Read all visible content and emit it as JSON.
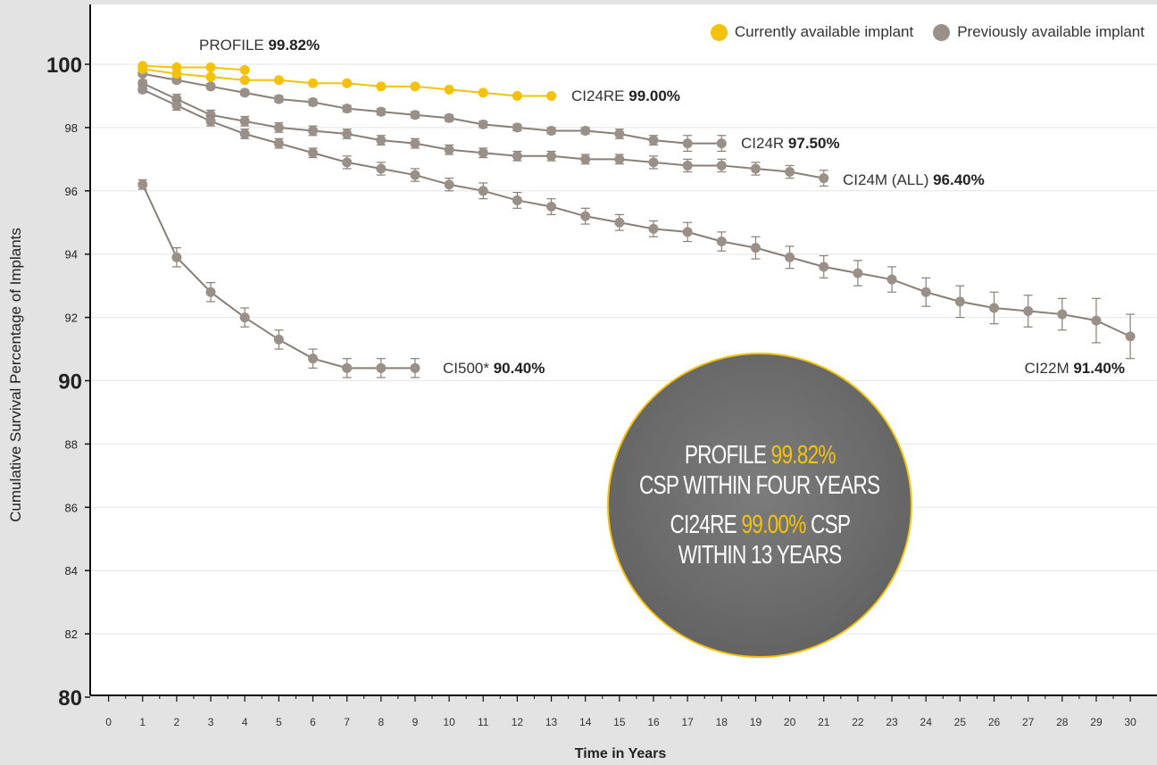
{
  "chart_data": {
    "type": "line",
    "xlabel": "Time in Years",
    "ylabel": "Cumulative Survival Percentage of Implants",
    "xlim": [
      0,
      30
    ],
    "ylim": [
      80,
      101.5
    ],
    "x_ticks": [
      0,
      1,
      2,
      3,
      4,
      5,
      6,
      7,
      8,
      9,
      10,
      11,
      12,
      13,
      14,
      15,
      16,
      17,
      18,
      19,
      20,
      21,
      22,
      23,
      24,
      25,
      26,
      27,
      28,
      29,
      30
    ],
    "y_ticks": [
      80,
      82,
      84,
      86,
      88,
      90,
      92,
      94,
      96,
      98,
      100
    ],
    "y_major_ticks": [
      80,
      90,
      100
    ],
    "grid": "horizontal",
    "legend": {
      "position": "top-right",
      "entries": [
        {
          "label": "Currently available implant",
          "color": "#f4c20d"
        },
        {
          "label": "Previously available implant",
          "color": "#9a9088"
        }
      ]
    },
    "series": [
      {
        "name": "PROFILE",
        "value_label": "99.82%",
        "group": "current",
        "x": [
          1,
          2,
          3,
          4
        ],
        "y": [
          99.95,
          99.9,
          99.9,
          99.82
        ],
        "err": [
          0,
          0,
          0,
          0
        ]
      },
      {
        "name": "CI24RE",
        "value_label": "99.00%",
        "group": "current",
        "x": [
          1,
          2,
          3,
          4,
          5,
          6,
          7,
          8,
          9,
          10,
          11,
          12,
          13
        ],
        "y": [
          99.85,
          99.7,
          99.6,
          99.5,
          99.5,
          99.4,
          99.4,
          99.3,
          99.3,
          99.2,
          99.1,
          99.0,
          99.0
        ],
        "err": [
          0,
          0,
          0,
          0,
          0,
          0,
          0,
          0,
          0,
          0,
          0,
          0,
          0
        ]
      },
      {
        "name": "CI24R",
        "value_label": "97.50%",
        "group": "previous",
        "x": [
          1,
          2,
          3,
          4,
          5,
          6,
          7,
          8,
          9,
          10,
          11,
          12,
          13,
          14,
          15,
          16,
          17,
          18
        ],
        "y": [
          99.7,
          99.5,
          99.3,
          99.1,
          98.9,
          98.8,
          98.6,
          98.5,
          98.4,
          98.3,
          98.1,
          98.0,
          97.9,
          97.9,
          97.8,
          97.6,
          97.5,
          97.5
        ],
        "err": [
          0.05,
          0.08,
          0.08,
          0.08,
          0.1,
          0.1,
          0.1,
          0.1,
          0.1,
          0.1,
          0.1,
          0.1,
          0.1,
          0.1,
          0.15,
          0.15,
          0.25,
          0.25
        ]
      },
      {
        "name": "CI24M (ALL)",
        "value_label": "96.40%",
        "group": "previous",
        "x": [
          1,
          2,
          3,
          4,
          5,
          6,
          7,
          8,
          9,
          10,
          11,
          12,
          13,
          14,
          15,
          16,
          17,
          18,
          19,
          20,
          21
        ],
        "y": [
          99.4,
          98.9,
          98.4,
          98.2,
          98.0,
          97.9,
          97.8,
          97.6,
          97.5,
          97.3,
          97.2,
          97.1,
          97.1,
          97.0,
          97.0,
          96.9,
          96.8,
          96.8,
          96.7,
          96.6,
          96.4
        ],
        "err": [
          0.1,
          0.15,
          0.15,
          0.15,
          0.15,
          0.15,
          0.15,
          0.15,
          0.15,
          0.15,
          0.15,
          0.15,
          0.15,
          0.15,
          0.15,
          0.2,
          0.2,
          0.2,
          0.2,
          0.2,
          0.25
        ]
      },
      {
        "name": "CI22M",
        "value_label": "91.40%",
        "group": "previous",
        "x": [
          1,
          2,
          3,
          4,
          5,
          6,
          7,
          8,
          9,
          10,
          11,
          12,
          13,
          14,
          15,
          16,
          17,
          18,
          19,
          20,
          21,
          22,
          23,
          24,
          25,
          26,
          27,
          28,
          29,
          30
        ],
        "y": [
          99.2,
          98.7,
          98.2,
          97.8,
          97.5,
          97.2,
          96.9,
          96.7,
          96.5,
          96.2,
          96.0,
          95.7,
          95.5,
          95.2,
          95.0,
          94.8,
          94.7,
          94.4,
          94.2,
          93.9,
          93.6,
          93.4,
          93.2,
          92.8,
          92.5,
          92.3,
          92.2,
          92.1,
          91.9,
          91.4
        ],
        "err": [
          0.1,
          0.15,
          0.15,
          0.15,
          0.15,
          0.15,
          0.2,
          0.2,
          0.2,
          0.2,
          0.25,
          0.25,
          0.25,
          0.25,
          0.25,
          0.25,
          0.3,
          0.3,
          0.35,
          0.35,
          0.35,
          0.4,
          0.4,
          0.45,
          0.5,
          0.5,
          0.5,
          0.5,
          0.7,
          0.7
        ]
      },
      {
        "name": "CI500*",
        "value_label": "90.40%",
        "group": "previous",
        "x": [
          1,
          2,
          3,
          4,
          5,
          6,
          7,
          8,
          9
        ],
        "y": [
          96.2,
          93.9,
          92.8,
          92.0,
          91.3,
          90.7,
          90.4,
          90.4,
          90.4
        ],
        "err": [
          0.15,
          0.3,
          0.3,
          0.3,
          0.3,
          0.3,
          0.3,
          0.3,
          0.3
        ]
      }
    ]
  },
  "callout": {
    "line1_prefix": "PROFILE ",
    "line1_value": "99.82%",
    "line2": "CSP WITHIN FOUR YEARS",
    "line3_prefix": "CI24RE ",
    "line3_value": "99.00%",
    "line3_suffix": " CSP",
    "line4": "WITHIN 13 YEARS"
  },
  "colors": {
    "current": "#f4c20d",
    "previous": "#9a9088",
    "previous_line": "#8a7f78",
    "axis": "#111111",
    "grid": "#e6e6e6",
    "plot_bg": "#ffffff",
    "outer_bg": "#e3e3e3"
  }
}
